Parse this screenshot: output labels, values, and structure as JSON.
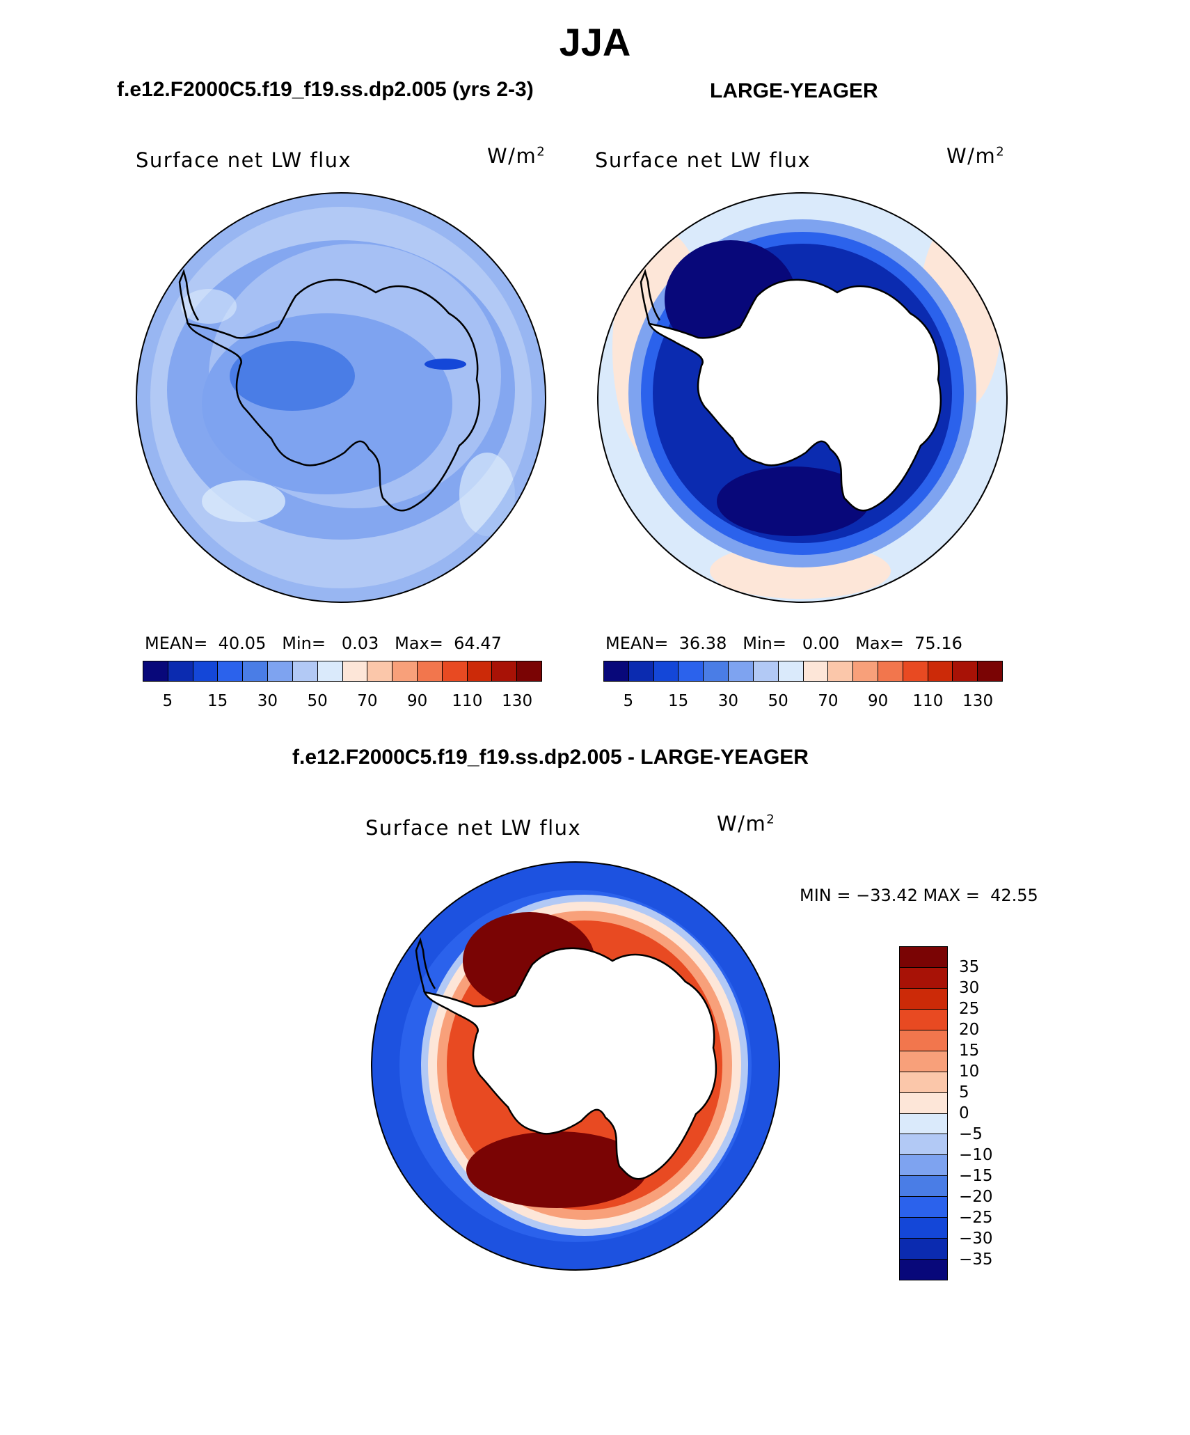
{
  "title": "JJA",
  "case1": {
    "title": "f.e12.F2000C5.f19_f19.ss.dp2.005 (yrs 2-3)",
    "label": "Surface net LW flux",
    "units": "W/m",
    "units_sup": "2",
    "mean_label": "MEAN=",
    "mean": "40.05",
    "min_label": "Min=",
    "min": "0.03",
    "max_label": "Max=",
    "max": "64.47"
  },
  "case2": {
    "title": "LARGE-YEAGER",
    "label": "Surface net LW flux",
    "units": "W/m",
    "units_sup": "2",
    "mean_label": "MEAN=",
    "mean": "36.38",
    "min_label": "Min=",
    "min": "0.00",
    "max_label": "Max=",
    "max": "75.16"
  },
  "diff": {
    "title": "f.e12.F2000C5.f19_f19.ss.dp2.005 - LARGE-YEAGER",
    "label": "Surface net LW flux",
    "units": "W/m",
    "units_sup": "2",
    "minmax_text": "MIN = −33.42 MAX =  42.55"
  },
  "colorbar_top": {
    "colors": [
      "#08087a",
      "#0b2bb0",
      "#1447d8",
      "#2b62ec",
      "#4a7de6",
      "#7ea3f0",
      "#b2c9f5",
      "#daeafb",
      "#fde6d8",
      "#fbc7aa",
      "#f8a07a",
      "#f2764d",
      "#e84a22",
      "#cc2a08",
      "#a81206",
      "#7a0404"
    ],
    "tick_labels": [
      "5",
      "15",
      "30",
      "50",
      "70",
      "90",
      "110",
      "130"
    ]
  },
  "colorbar_diff": {
    "colors": [
      "#7a0404",
      "#a81206",
      "#cc2a08",
      "#e84a22",
      "#f2764d",
      "#f8a07a",
      "#fbc7aa",
      "#fde6d8",
      "#daeafb",
      "#b2c9f5",
      "#7ea3f0",
      "#4a7de6",
      "#2b62ec",
      "#1447d8",
      "#0b2bb0",
      "#08087a"
    ],
    "tick_labels": [
      "35",
      "30",
      "25",
      "20",
      "15",
      "10",
      "5",
      "0",
      "−5",
      "−10",
      "−15",
      "−20",
      "−25",
      "−30",
      "−35"
    ]
  }
}
